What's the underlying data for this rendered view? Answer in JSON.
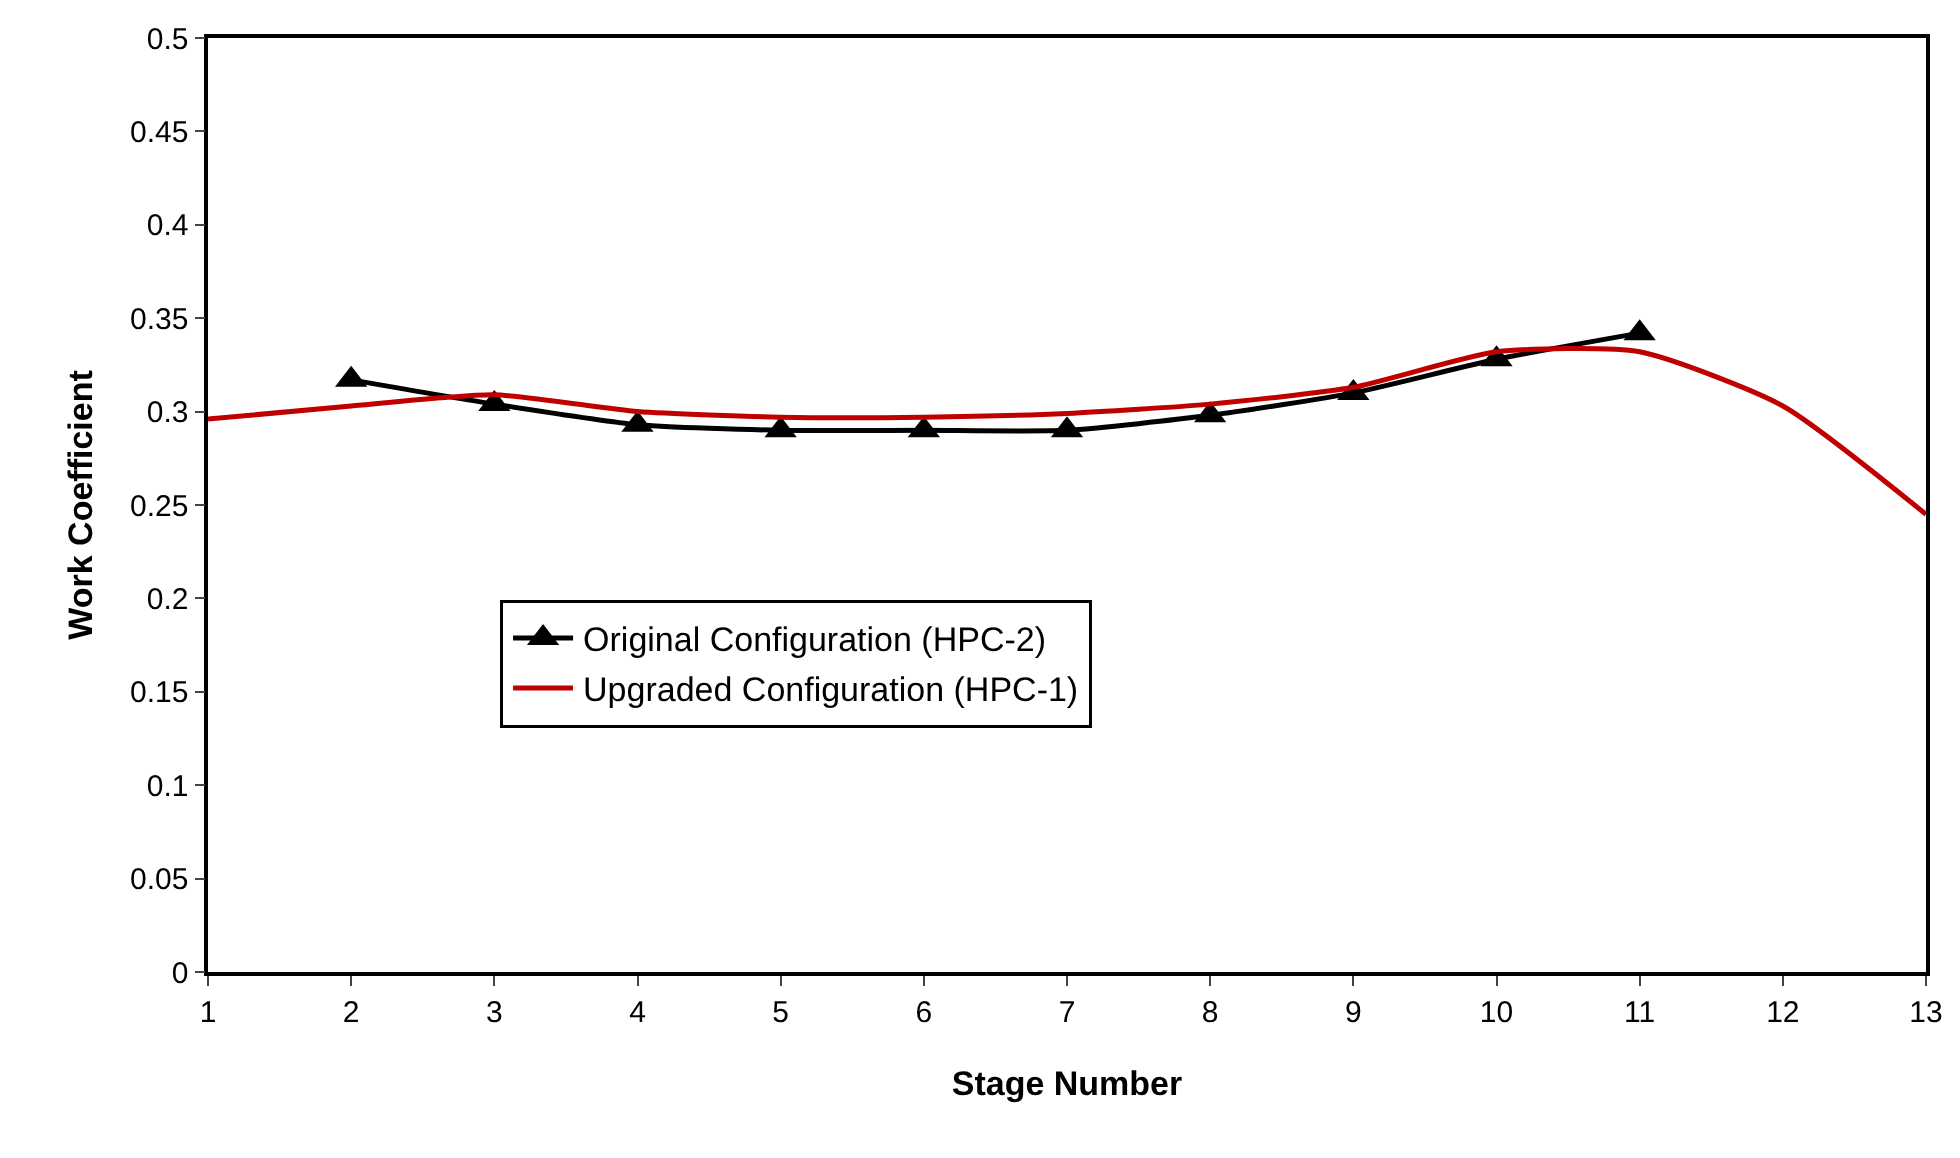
{
  "chart_data": {
    "type": "line",
    "xlabel": "Stage Number",
    "ylabel": "Work Coefficient",
    "xlim": [
      1,
      13
    ],
    "xticks": [
      1,
      2,
      3,
      4,
      5,
      6,
      7,
      8,
      9,
      10,
      11,
      12,
      13
    ],
    "ylim": [
      0,
      0.5
    ],
    "yticks": [
      0,
      0.05,
      0.1,
      0.15,
      0.2,
      0.25,
      0.3,
      0.35,
      0.4,
      0.45,
      0.5
    ],
    "grid": false,
    "legend": "center left",
    "series": [
      {
        "name": "Original Configuration (HPC-2)",
        "color": "#000000",
        "marker": "triangle",
        "x": [
          2,
          3,
          4,
          5,
          6,
          7,
          8,
          9,
          10,
          11
        ],
        "values": [
          0.317,
          0.304,
          0.293,
          0.29,
          0.29,
          0.29,
          0.298,
          0.31,
          0.328,
          0.342
        ]
      },
      {
        "name": "Upgraded Configuration (HPC-1)",
        "color": "#c00000",
        "marker": "none",
        "x": [
          1,
          2,
          3,
          4,
          5,
          6,
          7,
          8,
          9,
          10,
          11,
          12,
          13
        ],
        "values": [
          0.296,
          0.303,
          0.309,
          0.3,
          0.297,
          0.297,
          0.299,
          0.304,
          0.313,
          0.332,
          0.332,
          0.303,
          0.245
        ]
      }
    ]
  }
}
